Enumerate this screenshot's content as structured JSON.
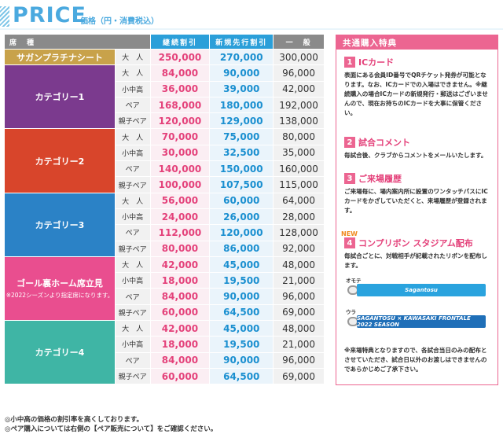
{
  "header": {
    "title": "PRICE",
    "subtitle": "価格（円・消費税込）"
  },
  "table": {
    "headers": {
      "seat": "席　種",
      "renewal": "継続割引",
      "new_first": "新規先行割引",
      "general": "一　般"
    },
    "groups": [
      {
        "name": "サガンプラチナシート",
        "note": "",
        "color": "#c8a24a",
        "rows": [
          {
            "type": "大　人",
            "renewal": "250,000",
            "new_first": "270,000",
            "general": "300,000"
          }
        ]
      },
      {
        "name": "カテゴリー1",
        "note": "",
        "color": "#7b3a8e",
        "rows": [
          {
            "type": "大　人",
            "renewal": "84,000",
            "new_first": "90,000",
            "general": "96,000"
          },
          {
            "type": "小中高",
            "renewal": "36,000",
            "new_first": "39,000",
            "general": "42,000"
          },
          {
            "type": "ペア",
            "renewal": "168,000",
            "new_first": "180,000",
            "general": "192,000"
          },
          {
            "type": "親子ペア",
            "renewal": "120,000",
            "new_first": "129,000",
            "general": "138,000"
          }
        ]
      },
      {
        "name": "カテゴリー2",
        "note": "",
        "color": "#d8452b",
        "rows": [
          {
            "type": "大　人",
            "renewal": "70,000",
            "new_first": "75,000",
            "general": "80,000"
          },
          {
            "type": "小中高",
            "renewal": "30,000",
            "new_first": "32,500",
            "general": "35,000"
          },
          {
            "type": "ペア",
            "renewal": "140,000",
            "new_first": "150,000",
            "general": "160,000"
          },
          {
            "type": "親子ペア",
            "renewal": "100,000",
            "new_first": "107,500",
            "general": "115,000"
          }
        ]
      },
      {
        "name": "カテゴリー3",
        "note": "",
        "color": "#2b82c6",
        "rows": [
          {
            "type": "大　人",
            "renewal": "56,000",
            "new_first": "60,000",
            "general": "64,000"
          },
          {
            "type": "小中高",
            "renewal": "24,000",
            "new_first": "26,000",
            "general": "28,000"
          },
          {
            "type": "ペア",
            "renewal": "112,000",
            "new_first": "120,000",
            "general": "128,000"
          },
          {
            "type": "親子ペア",
            "renewal": "80,000",
            "new_first": "86,000",
            "general": "92,000"
          }
        ]
      },
      {
        "name": "ゴール裏ホーム席立見",
        "note": "※2022シーズンより指定席になります。",
        "color": "#e94e8f",
        "rows": [
          {
            "type": "大　人",
            "renewal": "42,000",
            "new_first": "45,000",
            "general": "48,000"
          },
          {
            "type": "小中高",
            "renewal": "18,000",
            "new_first": "19,500",
            "general": "21,000"
          },
          {
            "type": "ペア",
            "renewal": "84,000",
            "new_first": "90,000",
            "general": "96,000"
          },
          {
            "type": "親子ペア",
            "renewal": "60,000",
            "new_first": "64,500",
            "general": "69,000"
          }
        ]
      },
      {
        "name": "カテゴリー4",
        "note": "",
        "color": "#3fb5a5",
        "rows": [
          {
            "type": "大　人",
            "renewal": "42,000",
            "new_first": "45,000",
            "general": "48,000"
          },
          {
            "type": "小中高",
            "renewal": "18,000",
            "new_first": "19,500",
            "general": "21,000"
          },
          {
            "type": "ペア",
            "renewal": "84,000",
            "new_first": "90,000",
            "general": "96,000"
          },
          {
            "type": "親子ペア",
            "renewal": "60,000",
            "new_first": "64,500",
            "general": "69,000"
          }
        ]
      }
    ]
  },
  "notes": [
    "◎小中高の価格の割引率を高くしております。",
    "◎ペア購入については右側の【ペア販売について】をご確認ください。"
  ],
  "panel": {
    "title": "共通購入特典",
    "perks": [
      {
        "num": "1",
        "name": "ICカード",
        "body": "表面にある会員ID番号でQRチケット発券が可能となります。なお、ICカードでの入場はできません。※継続購入の場合ICカードの新規発行・郵送はございませんので、現在お持ちのICカードを大事に保管ください。"
      },
      {
        "num": "2",
        "name": "試合コメント",
        "body": "毎試合後、クラブからコメントをメールいたします。"
      },
      {
        "num": "3",
        "name": "ご来場履歴",
        "body": "ご来場毎に、場内案内所に設置のワンタッチパスにICカードをかざしていただくと、来場履歴が登録されます。"
      },
      {
        "num": "4",
        "name": "コンプリボン スタジアム配布",
        "body": "毎試合ごとに、対戦相手が記載されたリボンを配布します。"
      }
    ],
    "new_badge": "NEW",
    "straps": [
      {
        "side": "オモテ",
        "text": "Sagantosu",
        "color": "#2aa3de"
      },
      {
        "side": "ウラ",
        "text": "SAGANTOSU × KAWASAKI FRONTALE 2022 SEASON",
        "color": "#1f6fb8"
      }
    ],
    "footnote": "※来場特典となりますので、各試合当日のみの配布とさせていただき、試合日以外のお渡しはできませんのであらかじめご了承下さい。"
  }
}
